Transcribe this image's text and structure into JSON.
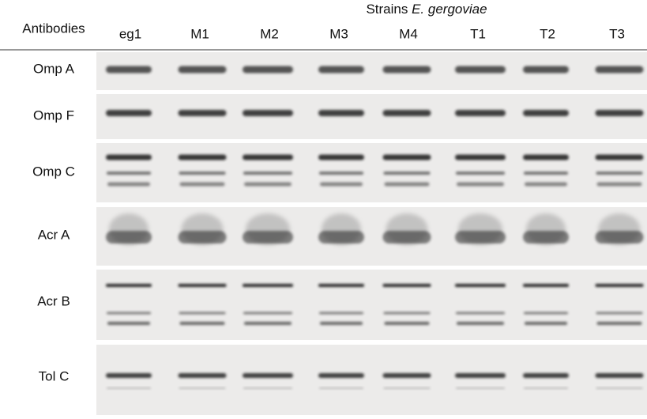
{
  "header": {
    "label": "Strains",
    "species": "E. gergoviae",
    "row_header": "Antibodies"
  },
  "lanes": [
    "eg1",
    "M1",
    "M2",
    "M3",
    "M4",
    "T1",
    "T2",
    "T3"
  ],
  "rows": [
    "Omp A",
    "Omp F",
    "Omp C",
    "Acr A",
    "Acr B",
    "Tol C"
  ]
}
